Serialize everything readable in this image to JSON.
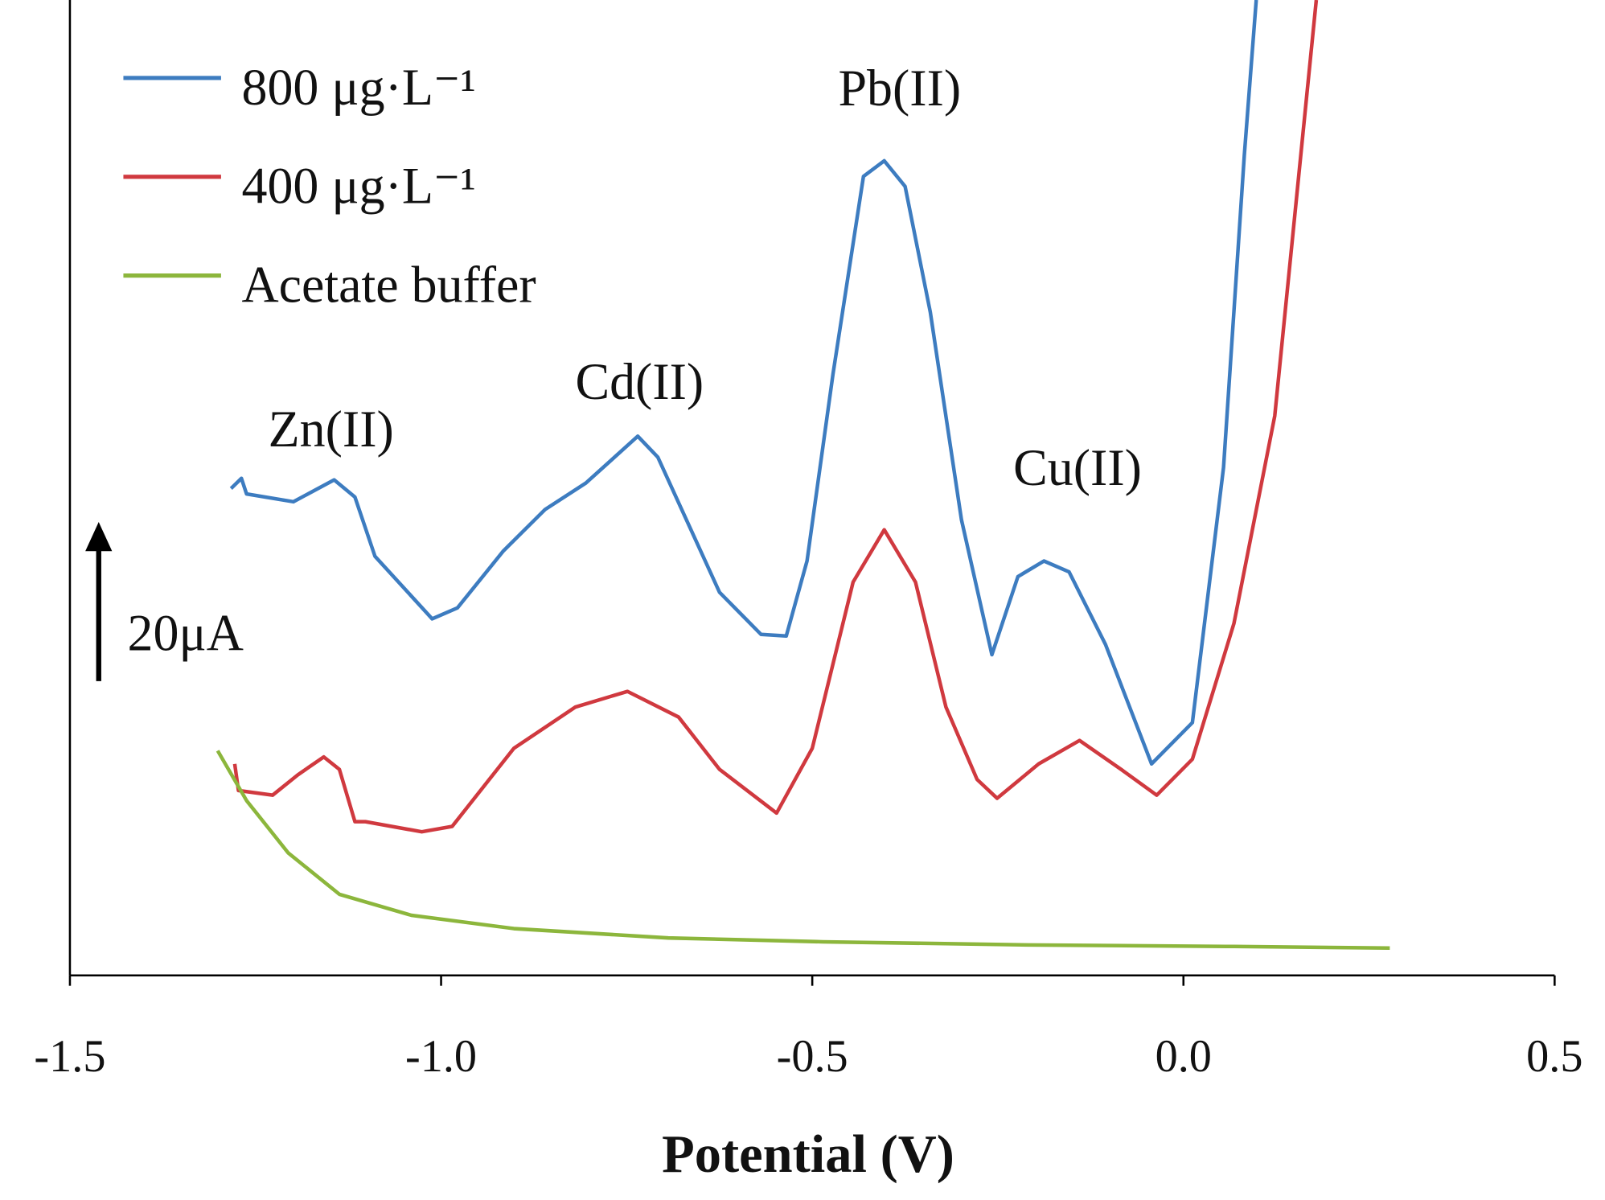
{
  "chart_data": {
    "type": "line",
    "x_label": "Potential (V)",
    "xlim": [
      -1.5,
      0.5
    ],
    "xticks": [
      -1.5,
      {
        "value": -1.0,
        "label": "-1.0"
      },
      -0.5,
      {
        "value": 0.0,
        "label": "0.0"
      },
      0.5
    ],
    "ylim": [
      0,
      125
    ],
    "scale_bar_label": "20μA",
    "annotations": [
      "Zn(II)",
      "Cd(II)",
      "Pb(II)",
      "Cu(II)"
    ],
    "legend": "upper left",
    "series": [
      {
        "name": "800 μg·L⁻¹",
        "color": "#3d7cc0",
        "x": [
          -1.283,
          -1.269,
          -1.262,
          -1.199,
          -1.144,
          -1.116,
          -1.089,
          -1.012,
          -0.978,
          -0.916,
          -0.86,
          -0.805,
          -0.735,
          -0.708,
          -0.625,
          -0.569,
          -0.535,
          -0.507,
          -0.472,
          -0.431,
          -0.403,
          -0.375,
          -0.341,
          -0.299,
          -0.258,
          -0.223,
          -0.188,
          -0.154,
          -0.105,
          -0.043,
          0.012,
          0.054,
          0.082,
          0.098
        ],
        "values": [
          62.4,
          63.7,
          61.7,
          60.7,
          63.5,
          61.3,
          53.7,
          45.7,
          47.1,
          54.4,
          59.7,
          63.1,
          69.1,
          66.4,
          49.1,
          43.7,
          43.5,
          53.1,
          77.1,
          102.4,
          104.4,
          101.1,
          85.0,
          58.4,
          41.1,
          51.1,
          53.1,
          51.7,
          42.4,
          27.1,
          32.4,
          65.1,
          105.1,
          125.0
        ]
      },
      {
        "name": "400 μg·L⁻¹",
        "color": "#d0393f",
        "x": [
          -1.278,
          -1.273,
          -1.227,
          -1.193,
          -1.158,
          -1.137,
          -1.116,
          -1.102,
          -1.026,
          -0.985,
          -0.902,
          -0.819,
          -0.749,
          -0.68,
          -0.625,
          -0.548,
          -0.5,
          -0.445,
          -0.403,
          -0.361,
          -0.32,
          -0.278,
          -0.251,
          -0.195,
          -0.14,
          -0.084,
          -0.036,
          0.012,
          0.068,
          0.123,
          0.179
        ],
        "values": [
          27.1,
          23.7,
          23.1,
          25.7,
          28.0,
          26.4,
          19.7,
          19.7,
          18.4,
          19.1,
          29.1,
          34.4,
          36.4,
          33.1,
          26.4,
          20.8,
          29.1,
          50.4,
          57.1,
          50.4,
          34.4,
          25.1,
          22.7,
          27.1,
          30.1,
          26.4,
          23.1,
          27.7,
          45.1,
          71.7,
          125.0
        ]
      },
      {
        "name": "Acetate buffer",
        "color": "#8cb63c",
        "x": [
          -1.301,
          -1.262,
          -1.206,
          -1.137,
          -1.04,
          -0.902,
          -0.694,
          -0.486,
          -0.209,
          0.068,
          0.278
        ],
        "values": [
          28.8,
          22.4,
          15.7,
          10.4,
          7.7,
          6.0,
          4.8,
          4.3,
          3.9,
          3.7,
          3.5
        ]
      }
    ]
  }
}
